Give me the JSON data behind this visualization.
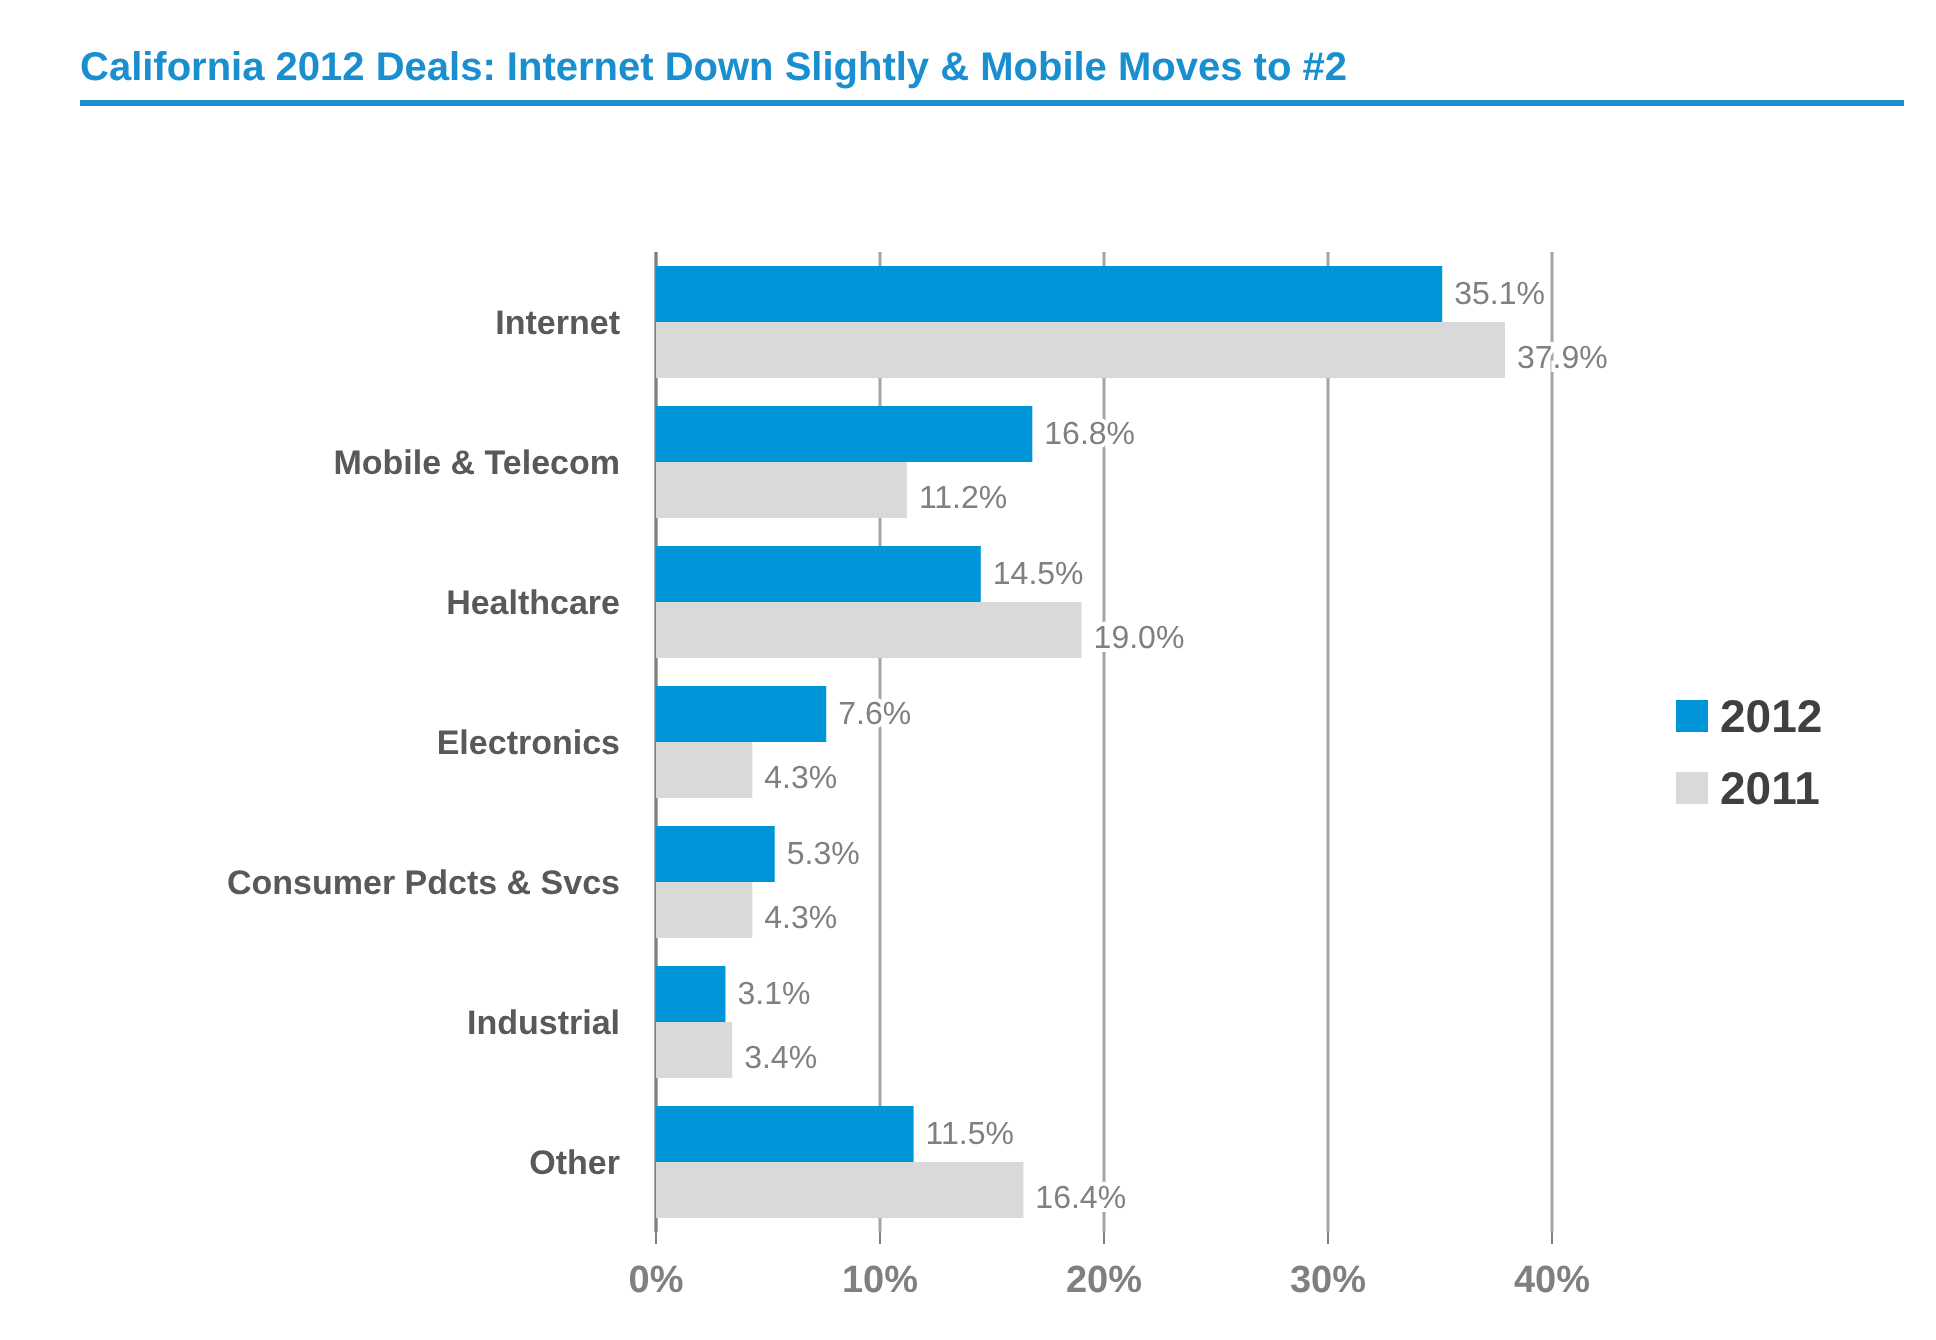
{
  "chart_data": {
    "type": "bar",
    "orientation": "horizontal",
    "title": "California 2012 Deals: Internet Down Slightly & Mobile Moves to #2",
    "categories": [
      "Internet",
      "Mobile & Telecom",
      "Healthcare",
      "Electronics",
      "Consumer Pdcts & Svcs",
      "Industrial",
      "Other"
    ],
    "series": [
      {
        "name": "2012",
        "color": "#0095d9",
        "values": [
          35.1,
          16.8,
          14.5,
          7.6,
          5.3,
          3.1,
          11.5
        ],
        "value_labels": [
          "35.1%",
          "16.8%",
          "14.5%",
          "7.6%",
          "5.3%",
          "3.1%",
          "11.5%"
        ]
      },
      {
        "name": "2011",
        "color": "#d9d9d9",
        "values": [
          37.9,
          11.2,
          19.0,
          4.3,
          4.3,
          3.4,
          16.4
        ],
        "value_labels": [
          "37.9%",
          "11.2%",
          "19.0%",
          "4.3%",
          "4.3%",
          "3.4%",
          "16.4%"
        ]
      }
    ],
    "xlim": [
      0,
      40
    ],
    "xticks": [
      {
        "value": 0,
        "label": "0%"
      },
      {
        "value": 10,
        "label": "10%"
      },
      {
        "value": 20,
        "label": "20%"
      },
      {
        "value": 30,
        "label": "30%"
      },
      {
        "value": 40,
        "label": "40%"
      }
    ],
    "grid": "x",
    "legend": "right"
  }
}
